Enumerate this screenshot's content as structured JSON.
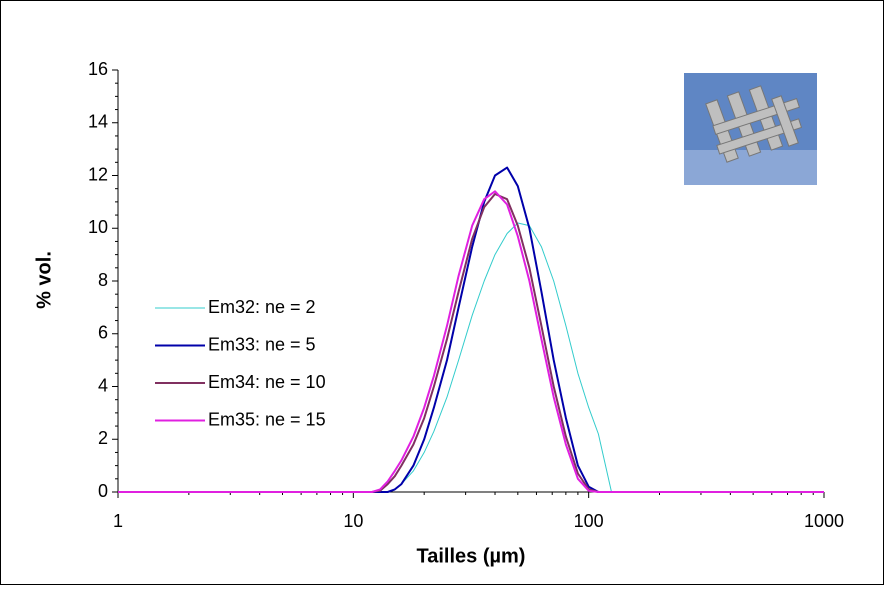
{
  "chart_data": {
    "type": "line",
    "xlabel": "Tailles (µm)",
    "ylabel": "% vol.",
    "xscale": "log",
    "legend": "left",
    "grid": false,
    "x": [
      1,
      10,
      12,
      13,
      14,
      15,
      16,
      18,
      20,
      22,
      25,
      28,
      32,
      36,
      40,
      45,
      50,
      56,
      63,
      71,
      80,
      90,
      100,
      110,
      125,
      140,
      1000
    ],
    "series": [
      {
        "name": "Em32: ne = 2",
        "color": "#33cccc",
        "width": 1,
        "values": [
          0,
          0,
          0,
          0,
          0,
          0.1,
          0.3,
          0.8,
          1.5,
          2.3,
          3.6,
          5.0,
          6.7,
          8.0,
          9.0,
          9.8,
          10.2,
          10.1,
          9.3,
          8.0,
          6.3,
          4.5,
          3.2,
          2.2,
          0,
          0,
          0
        ]
      },
      {
        "name": "Em33: ne = 5",
        "color": "#0000aa",
        "width": 2,
        "values": [
          0,
          0,
          0,
          0,
          0,
          0.1,
          0.3,
          1.0,
          2.0,
          3.2,
          5.0,
          7.0,
          9.3,
          11.0,
          12.0,
          12.3,
          11.6,
          10.0,
          7.6,
          5.0,
          2.8,
          1.0,
          0.2,
          0,
          0,
          0,
          0
        ]
      },
      {
        "name": "Em34: ne = 10",
        "color": "#803060",
        "width": 2,
        "values": [
          0,
          0,
          0,
          0.05,
          0.3,
          0.6,
          1.0,
          1.8,
          2.8,
          4.0,
          5.8,
          7.6,
          9.6,
          10.8,
          11.3,
          11.1,
          10.1,
          8.5,
          6.3,
          4.0,
          2.1,
          0.7,
          0.1,
          0,
          0,
          0,
          0
        ]
      },
      {
        "name": "Em35: ne = 15",
        "color": "#e020e0",
        "width": 2,
        "values": [
          0,
          0,
          0,
          0.1,
          0.4,
          0.8,
          1.2,
          2.1,
          3.2,
          4.4,
          6.3,
          8.2,
          10.1,
          11.1,
          11.4,
          10.9,
          9.7,
          8.0,
          5.8,
          3.6,
          1.8,
          0.5,
          0.05,
          0,
          0,
          0,
          0
        ]
      }
    ],
    "xlim": [
      1,
      1000
    ],
    "xticks": [
      1,
      10,
      100,
      1000
    ],
    "ylim": [
      0,
      16
    ],
    "yticks": [
      0,
      2,
      4,
      6,
      8,
      10,
      12,
      14,
      16
    ]
  }
}
